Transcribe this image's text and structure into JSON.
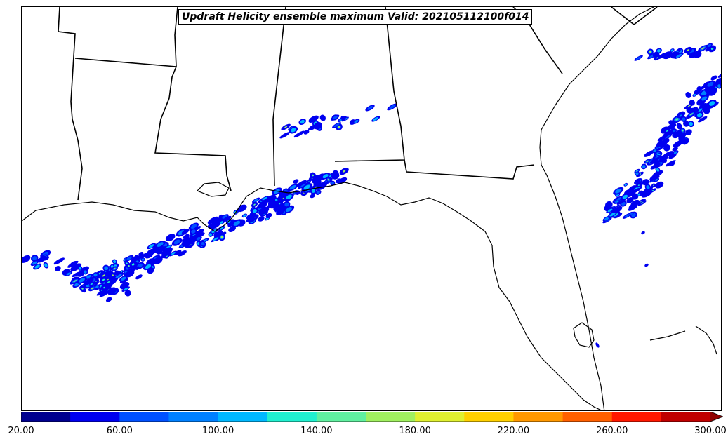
{
  "title": "Updraft Helicity ensemble maximum Valid: 202105112100f014",
  "colorbar": {
    "levels": [
      20,
      40,
      60,
      80,
      100,
      120,
      140,
      160,
      180,
      200,
      220,
      240,
      260,
      280,
      300
    ],
    "colors": [
      "#00008f",
      "#0000f0",
      "#0050ff",
      "#0080ff",
      "#00b8ff",
      "#20f0d0",
      "#60f0a0",
      "#a0f060",
      "#e0f030",
      "#ffd000",
      "#ff9800",
      "#ff6000",
      "#ff1800",
      "#c00000",
      "#900000"
    ],
    "extend": "max",
    "tick_labels": [
      "20.00",
      "60.00",
      "100.00",
      "140.00",
      "180.00",
      "220.00",
      "260.00",
      "300.00"
    ]
  },
  "map": {
    "region": "Southeastern United States and Gulf of Mexico",
    "features": [
      "coastlines",
      "state-borders"
    ],
    "field": "Updraft Helicity ensemble maximum"
  }
}
